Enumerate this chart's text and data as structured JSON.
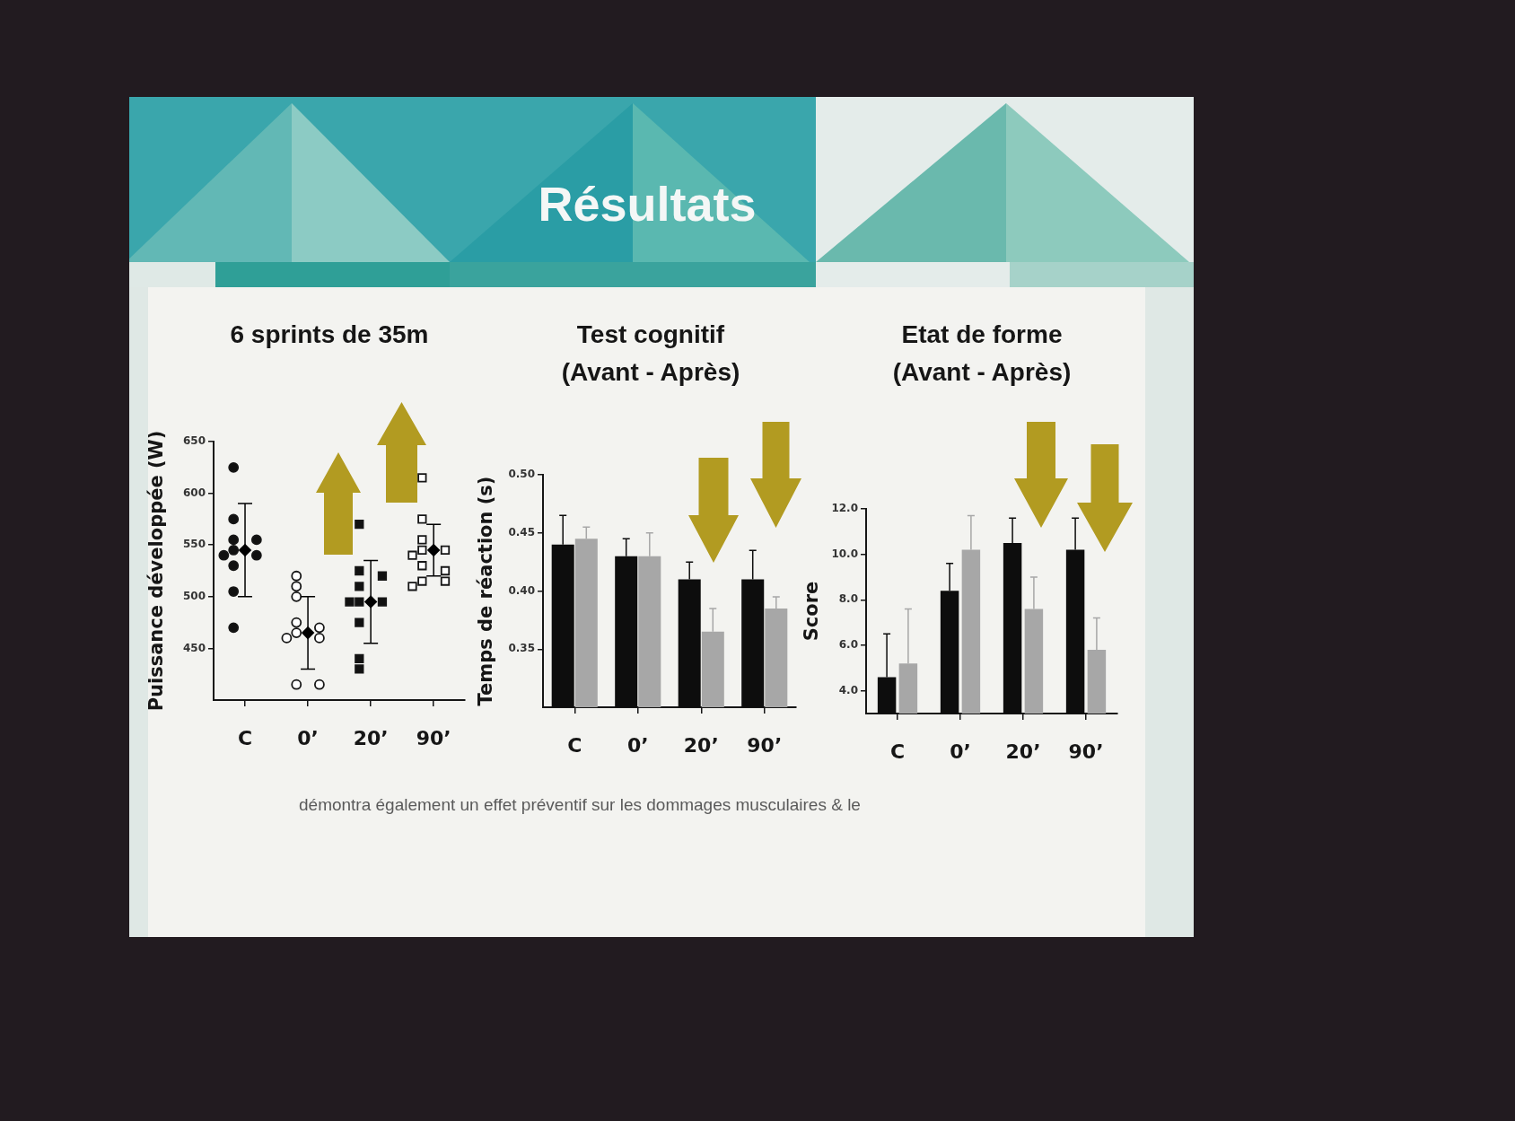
{
  "chart_data": [
    {
      "type": "other",
      "title": "Résultats"
    },
    {
      "type": "scatter",
      "title": "6 sprints de 35m",
      "ylabel": "Puissance développée (W)",
      "categories": [
        "C",
        "0’",
        "20’",
        "90’"
      ],
      "series": [
        {
          "color": "#111111",
          "marker": "circle",
          "x": [
            "C",
            "C",
            "C",
            "C",
            "C",
            "C",
            "C",
            "C",
            "C",
            "C"
          ],
          "values": [
            625,
            575,
            555,
            555,
            545,
            540,
            540,
            530,
            505,
            470
          ]
        },
        {
          "color": "#ffffff",
          "marker": "circle",
          "x": [
            "0’",
            "0’",
            "0’",
            "0’",
            "0’",
            "0’",
            "0’",
            "0’",
            "0’",
            "0’"
          ],
          "values": [
            520,
            510,
            500,
            475,
            470,
            465,
            460,
            460,
            415,
            415
          ]
        },
        {
          "color": "#111111",
          "marker": "square",
          "x": [
            "20’",
            "20’",
            "20’",
            "20’",
            "20’",
            "20’",
            "20’",
            "20’",
            "20’",
            "20’"
          ],
          "values": [
            570,
            525,
            520,
            510,
            495,
            495,
            495,
            475,
            440,
            430
          ]
        },
        {
          "color": "#ffffff",
          "marker": "square",
          "x": [
            "90’",
            "90’",
            "90’",
            "90’",
            "90’",
            "90’",
            "90’",
            "90’",
            "90’",
            "90’",
            "90’"
          ],
          "values": [
            615,
            575,
            555,
            545,
            545,
            540,
            530,
            525,
            515,
            515,
            510
          ]
        },
        {
          "color": "#000000",
          "marker": "diamond",
          "values": [
            545,
            465,
            495,
            545
          ],
          "errors": [
            45,
            35,
            40,
            25
          ]
        }
      ],
      "ylim": [
        400,
        650
      ],
      "yticks": [
        450,
        500,
        550,
        600,
        650
      ]
    },
    {
      "type": "bar",
      "title": "Test cognitif",
      "subtitle": "(Avant - Après)",
      "ylabel": "Temps de réaction (s)",
      "categories": [
        "C",
        "0’",
        "20’",
        "90’"
      ],
      "series": [
        {
          "color": "#0d0d0d",
          "values": [
            0.44,
            0.43,
            0.41,
            0.41
          ],
          "errors": [
            [
              0.44,
              0.465
            ],
            [
              0.43,
              0.445
            ],
            [
              0.41,
              0.425
            ],
            [
              0.41,
              0.435
            ]
          ]
        },
        {
          "color": "#a7a7a7",
          "values": [
            0.445,
            0.43,
            0.365,
            0.385
          ],
          "errors": [
            [
              0.445,
              0.455
            ],
            [
              0.43,
              0.45
            ],
            [
              0.365,
              0.385
            ],
            [
              0.385,
              0.395
            ]
          ]
        }
      ],
      "ylim": [
        0.3,
        0.5
      ],
      "yticks": [
        {
          "value": 0.35,
          "label": "0.35"
        },
        {
          "value": 0.4,
          "label": "0.40"
        },
        {
          "value": 0.45,
          "label": "0.45"
        },
        {
          "value": 0.5,
          "label": "0.50"
        }
      ]
    },
    {
      "type": "bar",
      "title": "Etat de forme",
      "subtitle": "(Avant - Après)",
      "ylabel": "Score",
      "categories": [
        "C",
        "0’",
        "20’",
        "90’"
      ],
      "series": [
        {
          "color": "#0d0d0d",
          "values": [
            4.6,
            8.4,
            10.5,
            10.2
          ],
          "errors": [
            [
              4.6,
              6.5
            ],
            [
              8.4,
              9.6
            ],
            [
              10.5,
              11.6
            ],
            [
              10.2,
              11.6
            ]
          ]
        },
        {
          "color": "#a7a7a7",
          "values": [
            5.2,
            10.2,
            7.6,
            5.8
          ],
          "errors": [
            [
              5.2,
              7.6
            ],
            [
              10.2,
              11.7
            ],
            [
              7.6,
              9.0
            ],
            [
              5.8,
              7.2
            ]
          ]
        }
      ],
      "ylim": [
        3,
        12
      ],
      "yticks": [
        {
          "value": 4,
          "label": "4.0"
        },
        {
          "value": 6,
          "label": "6.0"
        },
        {
          "value": 8,
          "label": "8.0"
        },
        {
          "value": 10,
          "label": "10.0"
        },
        {
          "value": 12,
          "label": "12.0"
        }
      ]
    },
    {
      "type": "other",
      "annotations": [
        "démontra également un effet préventif sur les dommages musculaires & le"
      ]
    }
  ]
}
